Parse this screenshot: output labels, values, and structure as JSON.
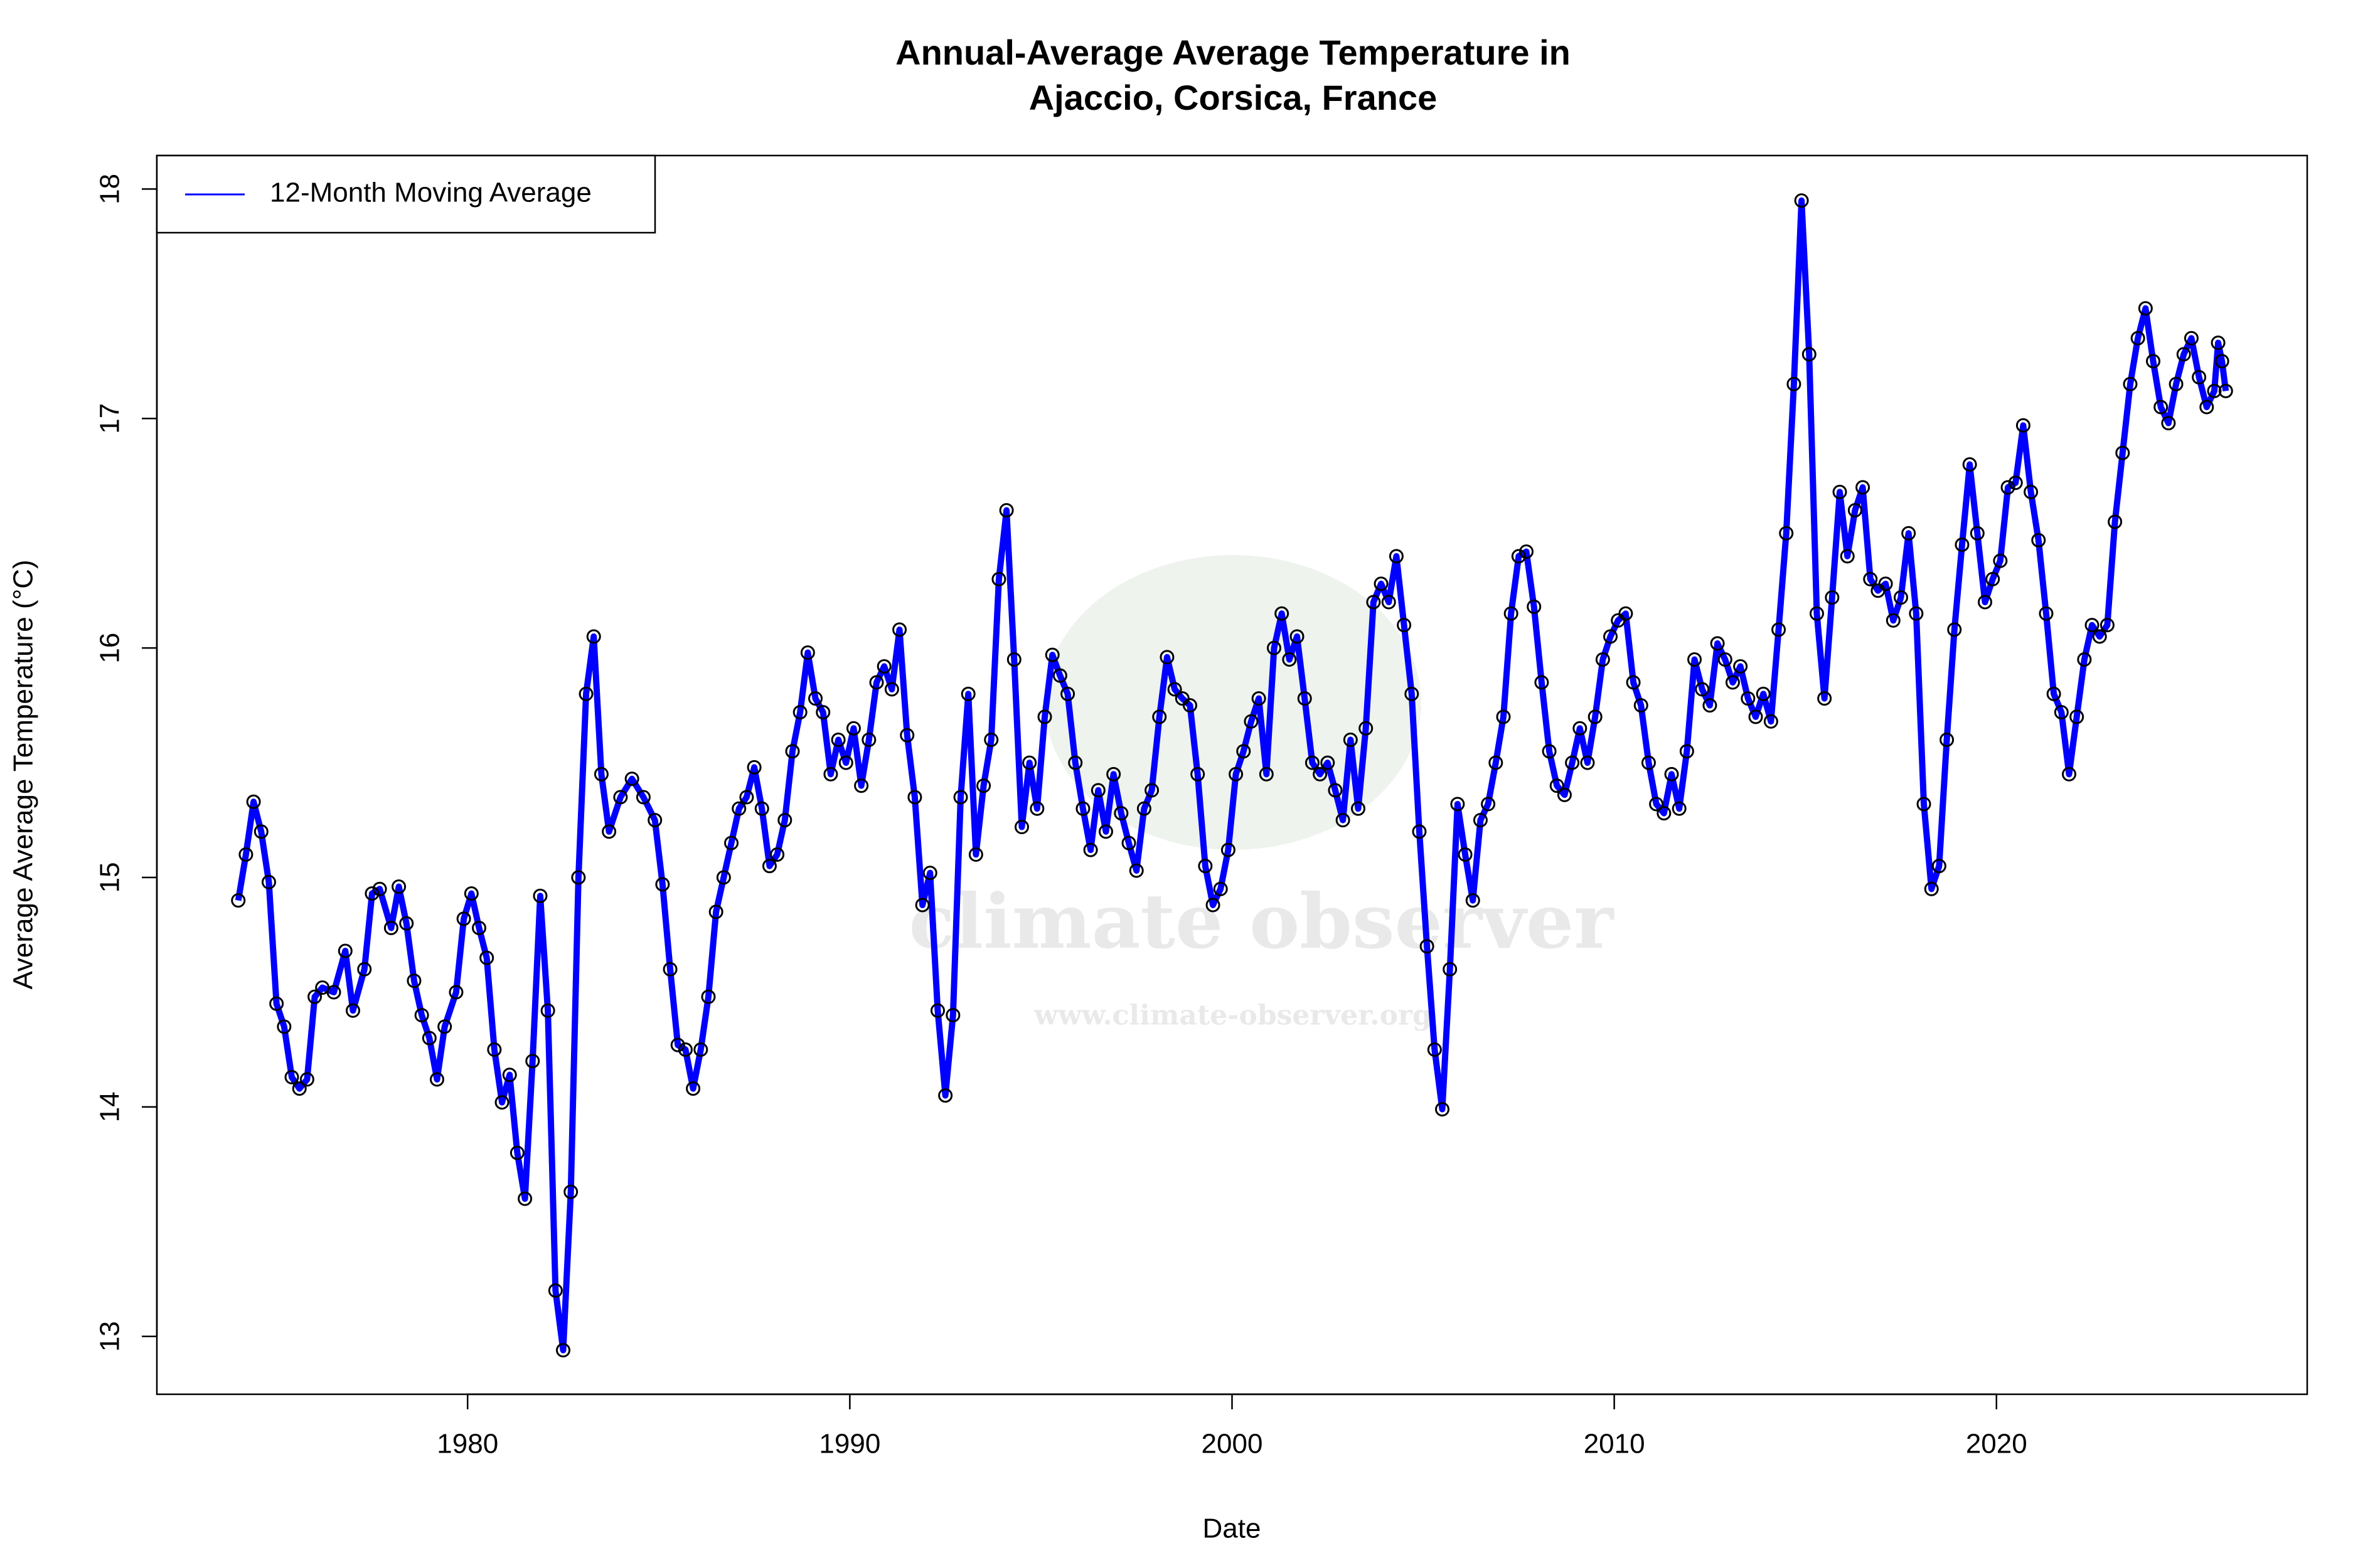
{
  "chart_data": {
    "type": "line",
    "title": "Annual-Average Average Temperature in\nAjaccio, Corsica, France",
    "x_label": "Date",
    "y_label": "Average Average Temperature (°C)",
    "watermark": "climate observer",
    "watermark_url": "www.climate-observer.org",
    "xlim": [
      1971.87,
      2028.13
    ],
    "ylim": [
      12.748,
      18.146
    ],
    "xticks": [
      1980,
      1990,
      2000,
      2010,
      2020
    ],
    "yticks": [
      13,
      14,
      15,
      16,
      17,
      18
    ],
    "legend": "top-left",
    "series": [
      {
        "name": "12-Month Moving Average",
        "color": "#0000ff",
        "marker_color": "#000000",
        "x": [
          1974.0,
          1974.2,
          1974.4,
          1974.6,
          1974.8,
          1975.0,
          1975.2,
          1975.4,
          1975.6,
          1975.8,
          1976.0,
          1976.2,
          1976.5,
          1976.8,
          1977.0,
          1977.3,
          1977.5,
          1977.7,
          1978.0,
          1978.2,
          1978.4,
          1978.6,
          1978.8,
          1979.0,
          1979.2,
          1979.4,
          1979.7,
          1979.9,
          1980.1,
          1980.3,
          1980.5,
          1980.7,
          1980.9,
          1981.1,
          1981.3,
          1981.5,
          1981.7,
          1981.9,
          1982.1,
          1982.3,
          1982.5,
          1982.7,
          1982.9,
          1983.1,
          1983.3,
          1983.5,
          1983.7,
          1984.0,
          1984.3,
          1984.6,
          1984.9,
          1985.1,
          1985.3,
          1985.5,
          1985.7,
          1985.9,
          1986.1,
          1986.3,
          1986.5,
          1986.7,
          1986.9,
          1987.1,
          1987.3,
          1987.5,
          1987.7,
          1987.9,
          1988.1,
          1988.3,
          1988.5,
          1988.7,
          1988.9,
          1989.1,
          1989.3,
          1989.5,
          1989.7,
          1989.9,
          1990.1,
          1990.3,
          1990.5,
          1990.7,
          1990.9,
          1991.1,
          1991.3,
          1991.5,
          1991.7,
          1991.9,
          1992.1,
          1992.3,
          1992.5,
          1992.7,
          1992.9,
          1993.1,
          1993.3,
          1993.5,
          1993.7,
          1993.9,
          1994.1,
          1994.3,
          1994.5,
          1994.7,
          1994.9,
          1995.1,
          1995.3,
          1995.5,
          1995.7,
          1995.9,
          1996.1,
          1996.3,
          1996.5,
          1996.7,
          1996.9,
          1997.1,
          1997.3,
          1997.5,
          1997.7,
          1997.9,
          1998.1,
          1998.3,
          1998.5,
          1998.7,
          1998.9,
          1999.1,
          1999.3,
          1999.5,
          1999.7,
          1999.9,
          2000.1,
          2000.3,
          2000.5,
          2000.7,
          2000.9,
          2001.1,
          2001.3,
          2001.5,
          2001.7,
          2001.9,
          2002.1,
          2002.3,
          2002.5,
          2002.7,
          2002.9,
          2003.1,
          2003.3,
          2003.5,
          2003.7,
          2003.9,
          2004.1,
          2004.3,
          2004.5,
          2004.7,
          2004.9,
          2005.1,
          2005.3,
          2005.5,
          2005.7,
          2005.9,
          2006.1,
          2006.3,
          2006.5,
          2006.7,
          2006.9,
          2007.1,
          2007.3,
          2007.5,
          2007.7,
          2007.9,
          2008.1,
          2008.3,
          2008.5,
          2008.7,
          2008.9,
          2009.1,
          2009.3,
          2009.5,
          2009.7,
          2009.9,
          2010.1,
          2010.3,
          2010.5,
          2010.7,
          2010.9,
          2011.1,
          2011.3,
          2011.5,
          2011.7,
          2011.9,
          2012.1,
          2012.3,
          2012.5,
          2012.7,
          2012.9,
          2013.1,
          2013.3,
          2013.5,
          2013.7,
          2013.9,
          2014.1,
          2014.3,
          2014.5,
          2014.7,
          2014.9,
          2015.1,
          2015.3,
          2015.5,
          2015.7,
          2015.9,
          2016.1,
          2016.3,
          2016.5,
          2016.7,
          2016.9,
          2017.1,
          2017.3,
          2017.5,
          2017.7,
          2017.9,
          2018.1,
          2018.3,
          2018.5,
          2018.7,
          2018.9,
          2019.1,
          2019.3,
          2019.5,
          2019.7,
          2019.9,
          2020.1,
          2020.3,
          2020.5,
          2020.7,
          2020.9,
          2021.1,
          2021.3,
          2021.5,
          2021.7,
          2021.9,
          2022.1,
          2022.3,
          2022.5,
          2022.7,
          2022.9,
          2023.1,
          2023.3,
          2023.5,
          2023.7,
          2023.9,
          2024.1,
          2024.3,
          2024.5,
          2024.7,
          2024.9,
          2025.1,
          2025.3,
          2025.5,
          2025.7,
          2025.8,
          2025.9,
          2026.0
        ],
        "values": [
          14.9,
          15.1,
          15.33,
          15.2,
          14.98,
          14.45,
          14.35,
          14.13,
          14.08,
          14.12,
          14.48,
          14.52,
          14.5,
          14.68,
          14.42,
          14.6,
          14.93,
          14.95,
          14.78,
          14.96,
          14.8,
          14.55,
          14.4,
          14.3,
          14.12,
          14.35,
          14.5,
          14.82,
          14.93,
          14.78,
          14.65,
          14.25,
          14.02,
          14.14,
          13.8,
          13.6,
          14.2,
          14.92,
          14.42,
          13.2,
          12.94,
          13.63,
          15.0,
          15.8,
          16.05,
          15.45,
          15.2,
          15.35,
          15.43,
          15.35,
          15.25,
          14.97,
          14.6,
          14.27,
          14.25,
          14.08,
          14.25,
          14.48,
          14.85,
          15.0,
          15.15,
          15.3,
          15.35,
          15.48,
          15.3,
          15.05,
          15.1,
          15.25,
          15.55,
          15.72,
          15.98,
          15.78,
          15.72,
          15.45,
          15.6,
          15.5,
          15.65,
          15.4,
          15.6,
          15.85,
          15.92,
          15.82,
          16.08,
          15.62,
          15.35,
          14.88,
          15.02,
          14.42,
          14.05,
          14.4,
          15.35,
          15.8,
          15.1,
          15.4,
          15.6,
          16.3,
          16.6,
          15.95,
          15.22,
          15.5,
          15.3,
          15.7,
          15.97,
          15.88,
          15.8,
          15.5,
          15.3,
          15.12,
          15.38,
          15.2,
          15.45,
          15.28,
          15.15,
          15.03,
          15.3,
          15.38,
          15.7,
          15.96,
          15.82,
          15.78,
          15.75,
          15.45,
          15.05,
          14.88,
          14.95,
          15.12,
          15.45,
          15.55,
          15.68,
          15.78,
          15.45,
          16.0,
          16.15,
          15.95,
          16.05,
          15.78,
          15.5,
          15.45,
          15.5,
          15.38,
          15.25,
          15.6,
          15.3,
          15.65,
          16.2,
          16.28,
          16.2,
          16.4,
          16.1,
          15.8,
          15.2,
          14.7,
          14.25,
          13.99,
          14.6,
          15.32,
          15.1,
          14.9,
          15.25,
          15.32,
          15.5,
          15.7,
          16.15,
          16.4,
          16.42,
          16.18,
          15.85,
          15.55,
          15.4,
          15.36,
          15.5,
          15.65,
          15.5,
          15.7,
          15.95,
          16.05,
          16.12,
          16.15,
          15.85,
          15.75,
          15.5,
          15.32,
          15.28,
          15.45,
          15.3,
          15.55,
          15.95,
          15.82,
          15.75,
          16.02,
          15.95,
          15.85,
          15.92,
          15.78,
          15.7,
          15.8,
          15.68,
          16.08,
          16.5,
          17.15,
          17.95,
          17.28,
          16.15,
          15.78,
          16.22,
          16.68,
          16.4,
          16.6,
          16.7,
          16.3,
          16.25,
          16.28,
          16.12,
          16.22,
          16.5,
          16.15,
          15.32,
          14.95,
          15.05,
          15.6,
          16.08,
          16.45,
          16.8,
          16.5,
          16.2,
          16.3,
          16.38,
          16.7,
          16.72,
          16.97,
          16.68,
          16.47,
          16.15,
          15.8,
          15.72,
          15.45,
          15.7,
          15.95,
          16.1,
          16.05,
          16.1,
          16.55,
          16.85,
          17.15,
          17.35,
          17.48,
          17.25,
          17.05,
          16.98,
          17.15,
          17.28,
          17.35,
          17.18,
          17.05,
          17.12,
          17.33,
          17.25,
          17.12
        ]
      }
    ]
  }
}
